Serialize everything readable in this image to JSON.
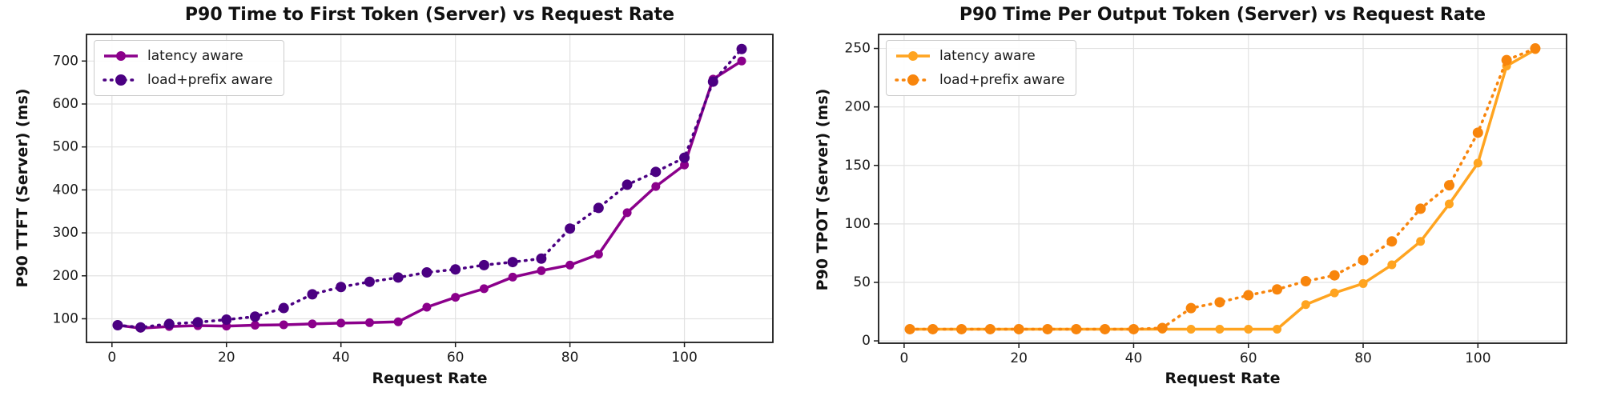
{
  "figure": {
    "background": "#ffffff",
    "grid_color": "#e2e2e2",
    "spine_color": "#1a1a1a",
    "tick_label_color": "#1a1a1a"
  },
  "chart_data": [
    {
      "type": "line",
      "title": "P90 Time to First Token (Server) vs Request Rate",
      "xlabel": "Request Rate",
      "ylabel": "P90 TTFT (Server) (ms)",
      "xlim": [
        -4.45,
        115.45
      ],
      "ylim": [
        45,
        762
      ],
      "xticks": [
        0,
        20,
        40,
        60,
        80,
        100
      ],
      "yticks": [
        100,
        200,
        300,
        400,
        500,
        600,
        700
      ],
      "grid": true,
      "legend_position": "upper-left",
      "x": [
        1,
        5,
        10,
        15,
        20,
        25,
        30,
        35,
        40,
        45,
        50,
        55,
        60,
        65,
        70,
        75,
        80,
        85,
        90,
        95,
        100,
        105,
        110
      ],
      "series": [
        {
          "name": "latency aware",
          "style": "solid",
          "color": "#8B008B",
          "values": [
            85,
            78,
            82,
            84,
            83,
            85,
            86,
            88,
            90,
            91,
            93,
            127,
            150,
            170,
            197,
            212,
            225,
            250,
            347,
            408,
            458,
            658,
            700
          ]
        },
        {
          "name": "load+prefix aware",
          "style": "dotted",
          "color": "#4B0082",
          "values": [
            85,
            80,
            88,
            92,
            98,
            105,
            125,
            157,
            174,
            186,
            196,
            208,
            215,
            225,
            232,
            240,
            310,
            358,
            412,
            442,
            475,
            652,
            728
          ]
        }
      ]
    },
    {
      "type": "line",
      "title": "P90 Time Per Output Token (Server) vs Request Rate",
      "xlabel": "Request Rate",
      "ylabel": "P90 TPOT (Server) (ms)",
      "xlim": [
        -4.45,
        115.45
      ],
      "ylim": [
        -2,
        262
      ],
      "xticks": [
        0,
        20,
        40,
        60,
        80,
        100
      ],
      "yticks": [
        0,
        50,
        100,
        150,
        200,
        250
      ],
      "grid": true,
      "legend_position": "upper-left",
      "x": [
        1,
        5,
        10,
        15,
        20,
        25,
        30,
        35,
        40,
        45,
        50,
        55,
        60,
        65,
        70,
        75,
        80,
        85,
        90,
        95,
        100,
        105,
        110
      ],
      "series": [
        {
          "name": "latency aware",
          "style": "solid",
          "color": "#FFA420",
          "values": [
            10,
            10,
            10,
            10,
            10,
            10,
            10,
            10,
            10,
            10,
            10,
            10,
            10,
            10,
            31,
            41,
            49,
            65,
            85,
            117,
            152,
            235,
            249
          ]
        },
        {
          "name": "load+prefix aware",
          "style": "dotted",
          "color": "#F8850C",
          "values": [
            10,
            10,
            10,
            10,
            10,
            10,
            10,
            10,
            10,
            11,
            28,
            33,
            39,
            44,
            51,
            56,
            69,
            85,
            113,
            133,
            178,
            240,
            250
          ]
        }
      ]
    }
  ]
}
